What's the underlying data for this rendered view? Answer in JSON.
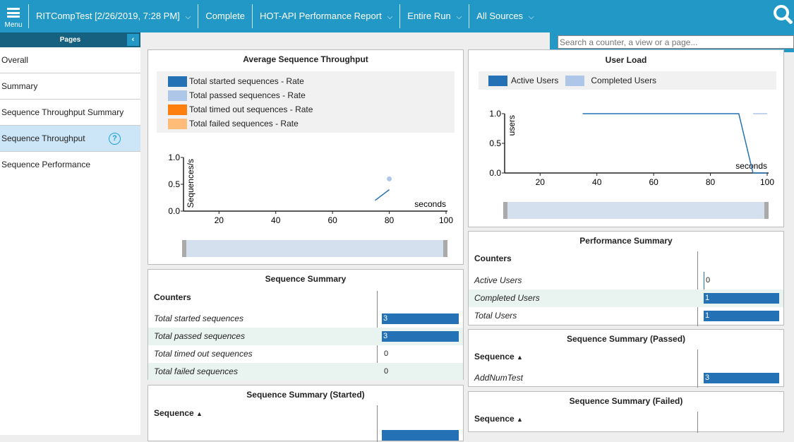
{
  "topbar": {
    "menu_label": "Menu",
    "run": "RITCompTest [2/26/2019, 7:28 PM]",
    "status": "Complete",
    "report": "HOT-API Performance Report",
    "range": "Entire Run",
    "sources": "All Sources",
    "search_placeholder": "Search a counter, a view or a page..."
  },
  "sidebar": {
    "title": "Pages",
    "items": [
      {
        "label": "Overall"
      },
      {
        "label": "Summary"
      },
      {
        "label": "Sequence Throughput Summary"
      },
      {
        "label": "Sequence Throughput",
        "selected": true
      },
      {
        "label": "Sequence Performance"
      }
    ]
  },
  "throughput": {
    "title": "Average Sequence Throughput",
    "legend": [
      "Total started sequences - Rate",
      "Total passed sequences - Rate",
      "Total timed out sequences - Rate",
      "Total failed sequences - Rate"
    ]
  },
  "userload": {
    "title": "User Load",
    "legend": [
      "Active Users",
      "Completed Users"
    ]
  },
  "chart_data": [
    {
      "type": "line",
      "title": "Average Sequence Throughput",
      "ylabel": "Sequences/s",
      "xlabel": "seconds",
      "xlim": [
        7.5,
        100
      ],
      "ylim": [
        0,
        1
      ],
      "xticks": [
        20,
        40,
        60,
        80,
        100
      ],
      "yticks": [
        "0.0",
        "0.5",
        "1.0"
      ],
      "legend_placement": "top",
      "series": [
        {
          "name": "Total started sequences - Rate",
          "color": "#2472b5",
          "x": [
            75,
            80
          ],
          "y": [
            0.2,
            0.4
          ]
        },
        {
          "name": "Total passed sequences - Rate",
          "color": "#aec7e8",
          "x": [
            80
          ],
          "y": [
            0.6
          ]
        },
        {
          "name": "Total timed out sequences - Rate",
          "color": "#ff7f0e",
          "x": [],
          "y": []
        },
        {
          "name": "Total failed sequences - Rate",
          "color": "#ffbb78",
          "x": [],
          "y": []
        }
      ]
    },
    {
      "type": "line",
      "title": "User Load",
      "ylabel": "users",
      "xlabel": "seconds",
      "xlim": [
        7.5,
        100
      ],
      "ylim": [
        0,
        1
      ],
      "xticks": [
        20,
        40,
        60,
        80,
        100
      ],
      "yticks": [
        "0.0",
        "0.5",
        "1.0"
      ],
      "legend_placement": "top",
      "series": [
        {
          "name": "Active Users",
          "color": "#2472b5",
          "x": [
            35,
            90,
            95,
            100
          ],
          "y": [
            1,
            1,
            0,
            0
          ]
        },
        {
          "name": "Completed Users",
          "color": "#aec7e8",
          "x": [
            95,
            100
          ],
          "y": [
            1,
            1
          ]
        }
      ]
    }
  ],
  "seq_summary": {
    "title": "Sequence Summary",
    "header": "Counters",
    "rows": [
      {
        "label": "Total started sequences",
        "value": "3"
      },
      {
        "label": "Total passed sequences",
        "value": "3"
      },
      {
        "label": "Total timed out sequences",
        "value": "0"
      },
      {
        "label": "Total failed sequences",
        "value": "0"
      }
    ]
  },
  "perf_summary": {
    "title": "Performance Summary",
    "header": "Counters",
    "rows": [
      {
        "label": "Active Users",
        "value": "0"
      },
      {
        "label": "Completed Users",
        "value": "1"
      },
      {
        "label": "Total Users",
        "value": "1"
      }
    ]
  },
  "seq_started": {
    "title": "Sequence Summary (Started)",
    "header": "Sequence",
    "sort": "▲"
  },
  "seq_passed": {
    "title": "Sequence Summary (Passed)",
    "header": "Sequence",
    "sort": "▲",
    "rows": [
      {
        "label": "AddNumTest",
        "value": "3"
      }
    ]
  },
  "seq_failed": {
    "title": "Sequence Summary (Failed)",
    "header": "Sequence",
    "sort": "▲"
  }
}
